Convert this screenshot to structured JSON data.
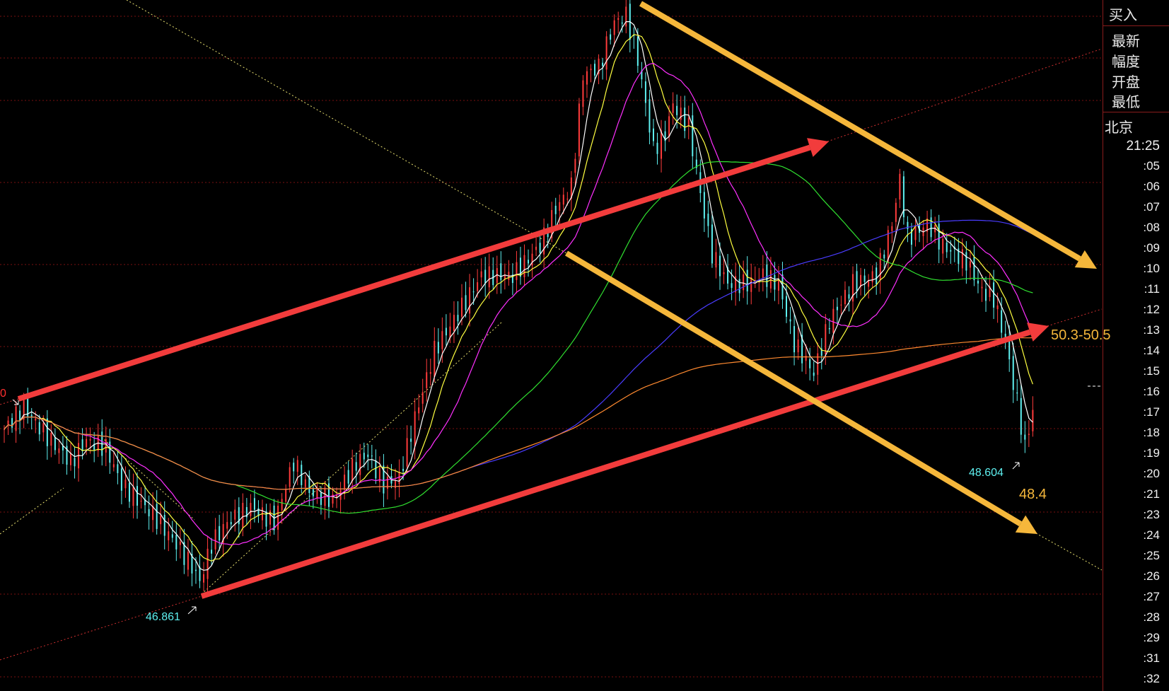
{
  "panel": {
    "buy_label": "买入",
    "fields": [
      "最新",
      "幅度",
      "开盘",
      "最低"
    ],
    "timezone_label": "北京",
    "time_header": "21:25",
    "times": [
      ":05",
      ":06",
      ":07",
      ":08",
      ":09",
      ":10",
      ":11",
      ":12",
      ":13",
      ":14",
      ":15",
      ":16",
      ":17",
      ":18",
      ":19",
      ":20",
      ":21",
      ":23",
      ":24",
      ":25",
      ":26",
      ":27",
      ":28",
      ":29",
      ":31",
      ":32"
    ]
  },
  "chart_data": {
    "type": "candlestick",
    "title": "",
    "colors": {
      "up": "#ff3b3b",
      "down": "#5ef0f0",
      "grid": "#7a1010"
    },
    "moving_averages": [
      {
        "period": 5,
        "color": "#ffffff"
      },
      {
        "period": 10,
        "color": "#ffff40"
      },
      {
        "period": 20,
        "color": "#ff30ff"
      },
      {
        "period": 60,
        "color": "#30e030"
      },
      {
        "period": 120,
        "color": "#4a3cff"
      },
      {
        "period": 250,
        "color": "#ff8a30"
      }
    ],
    "close_keyframes": [
      [
        0,
        48.83
      ],
      [
        5,
        49.11
      ],
      [
        10,
        48.79
      ],
      [
        17,
        48.42
      ],
      [
        21,
        48.69
      ],
      [
        26,
        48.6
      ],
      [
        30,
        48.14
      ],
      [
        38,
        47.77
      ],
      [
        44,
        47.4
      ],
      [
        48,
        47.12
      ],
      [
        50,
        46.93
      ],
      [
        53,
        47.4
      ],
      [
        57,
        47.67
      ],
      [
        63,
        47.86
      ],
      [
        69,
        47.67
      ],
      [
        74,
        48.42
      ],
      [
        78,
        48.05
      ],
      [
        84,
        47.95
      ],
      [
        90,
        48.42
      ],
      [
        93,
        48.51
      ],
      [
        97,
        48.14
      ],
      [
        101,
        48.23
      ],
      [
        105,
        48.97
      ],
      [
        110,
        49.81
      ],
      [
        116,
        50.27
      ],
      [
        122,
        50.74
      ],
      [
        130,
        50.74
      ],
      [
        137,
        51.11
      ],
      [
        141,
        51.57
      ],
      [
        145,
        51.85
      ],
      [
        148,
        53.24
      ],
      [
        152,
        53.33
      ],
      [
        156,
        53.89
      ],
      [
        159,
        53.98
      ],
      [
        162,
        53.43
      ],
      [
        166,
        52.31
      ],
      [
        169,
        52.5
      ],
      [
        171,
        52.87
      ],
      [
        175,
        52.59
      ],
      [
        178,
        51.76
      ],
      [
        181,
        51.01
      ],
      [
        185,
        50.64
      ],
      [
        190,
        50.64
      ],
      [
        194,
        50.74
      ],
      [
        198,
        50.64
      ],
      [
        202,
        49.9
      ],
      [
        207,
        49.53
      ],
      [
        211,
        50.18
      ],
      [
        217,
        50.64
      ],
      [
        223,
        50.74
      ],
      [
        227,
        51.39
      ],
      [
        229,
        51.94
      ],
      [
        231,
        51.2
      ],
      [
        236,
        51.39
      ],
      [
        240,
        51.11
      ],
      [
        246,
        50.92
      ],
      [
        250,
        50.55
      ],
      [
        253,
        50.46
      ],
      [
        256,
        49.9
      ],
      [
        259,
        49.16
      ],
      [
        261,
        48.6
      ],
      [
        263,
        49.07
      ]
    ],
    "annotations": {
      "low_label": "46.861",
      "recent_low_label": "48.604",
      "target_zone_label": "50.3-50.5",
      "target_low_label": "48.4",
      "left_edge_label": "0"
    }
  }
}
